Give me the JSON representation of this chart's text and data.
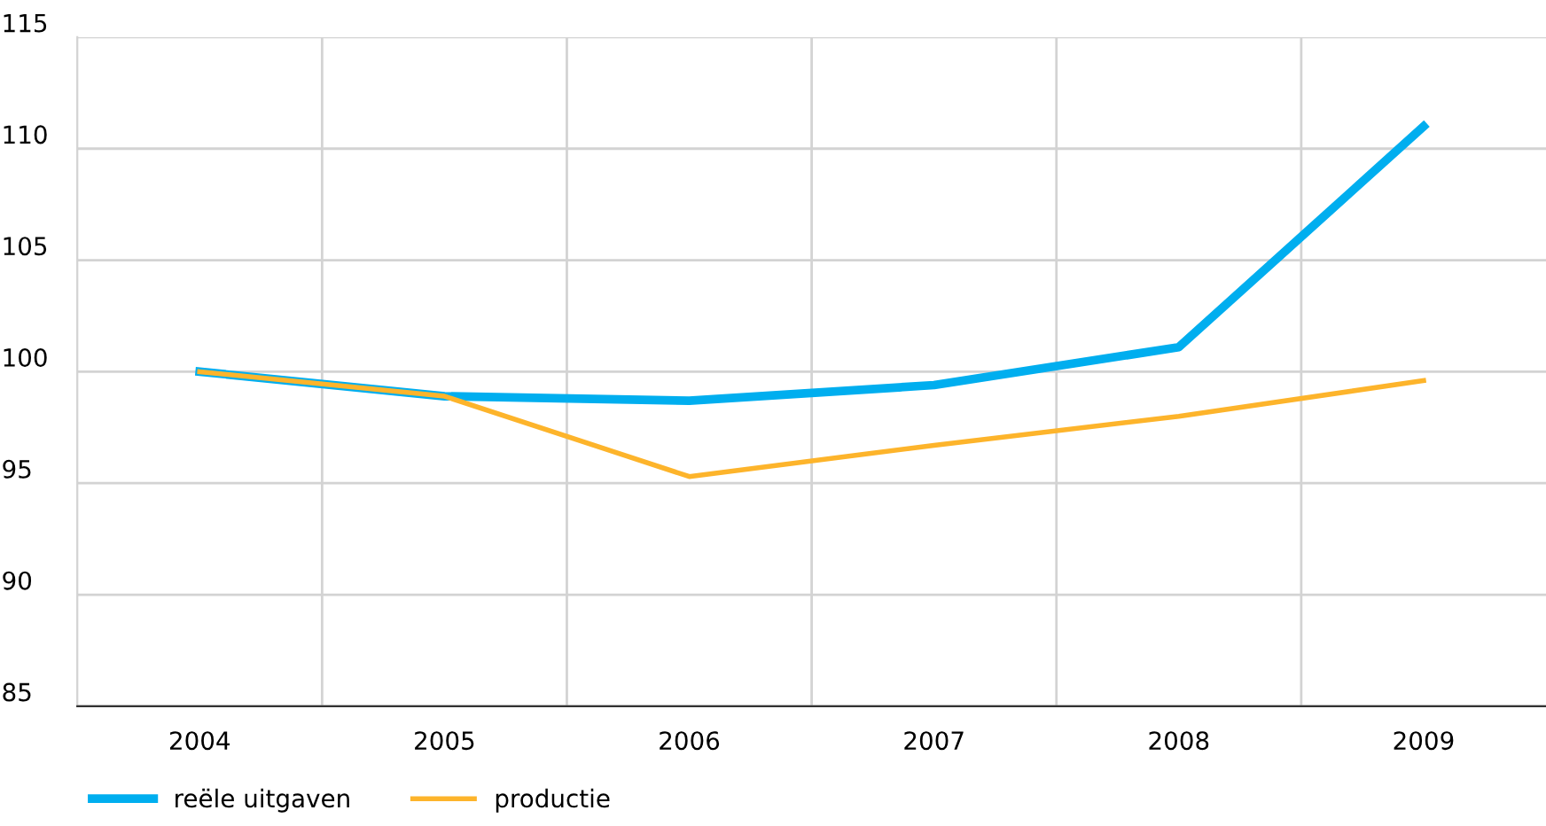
{
  "chart_data": {
    "type": "line",
    "categories": [
      "2004",
      "2005",
      "2006",
      "2007",
      "2008",
      "2009"
    ],
    "series": [
      {
        "name": "reële uitgaven",
        "color": "#00aeef",
        "values": [
          100,
          98.9,
          98.7,
          99.4,
          101.1,
          111.0
        ]
      },
      {
        "name": "productie",
        "color": "#fdb42b",
        "values": [
          100,
          98.9,
          95.3,
          96.7,
          98.0,
          99.6
        ]
      }
    ],
    "ylim": [
      85,
      115
    ],
    "yticks": [
      85,
      90,
      95,
      100,
      105,
      110,
      115
    ],
    "grid": true,
    "legend": "bottom left",
    "marker": "none",
    "line_style": "solid"
  }
}
